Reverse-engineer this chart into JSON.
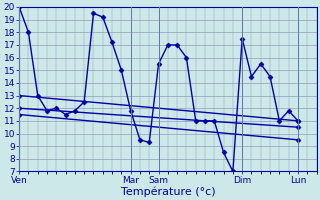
{
  "background_color": "#cce8e8",
  "grid_color": "#9999bb",
  "line_color": "#0000aa",
  "ylim": [
    7,
    20
  ],
  "yticks": [
    7,
    8,
    9,
    10,
    11,
    12,
    13,
    14,
    15,
    16,
    17,
    18,
    19,
    20
  ],
  "xlabel": "Température (°c)",
  "xlabel_fontsize": 8,
  "tick_fontsize": 6.5,
  "xtick_labels": [
    "Ven",
    "Mar",
    "Sam",
    "Dim",
    "Lun"
  ],
  "xtick_positions": [
    0,
    12,
    15,
    24,
    30
  ],
  "xlim": [
    0,
    32
  ],
  "series_main": {
    "x": [
      0,
      1,
      2,
      3,
      4,
      5,
      6,
      7,
      8,
      9,
      10,
      11,
      12,
      13,
      14,
      15,
      16,
      17,
      18,
      19,
      20,
      21,
      22,
      23,
      24,
      25,
      26,
      27,
      28,
      29,
      30
    ],
    "y": [
      20,
      18,
      13,
      11.8,
      12,
      11.5,
      11.8,
      12.5,
      19.5,
      19.2,
      17.2,
      15.0,
      11.8,
      9.5,
      9.3,
      15.5,
      17.0,
      17.0,
      16.0,
      11.0,
      11.0,
      11.0,
      8.5,
      7.0,
      17.5,
      14.5,
      15.5,
      14.5,
      11.0,
      11.8,
      11.0
    ]
  },
  "trend_lines": [
    {
      "x0": 0,
      "y0": 13,
      "x1": 30,
      "y1": 11.0
    },
    {
      "x0": 0,
      "y0": 12,
      "x1": 30,
      "y1": 10.5
    },
    {
      "x0": 0,
      "y0": 11.5,
      "x1": 30,
      "y1": 9.5
    }
  ],
  "marker": "D",
  "markersize": 2.5,
  "linewidth": 1.0
}
